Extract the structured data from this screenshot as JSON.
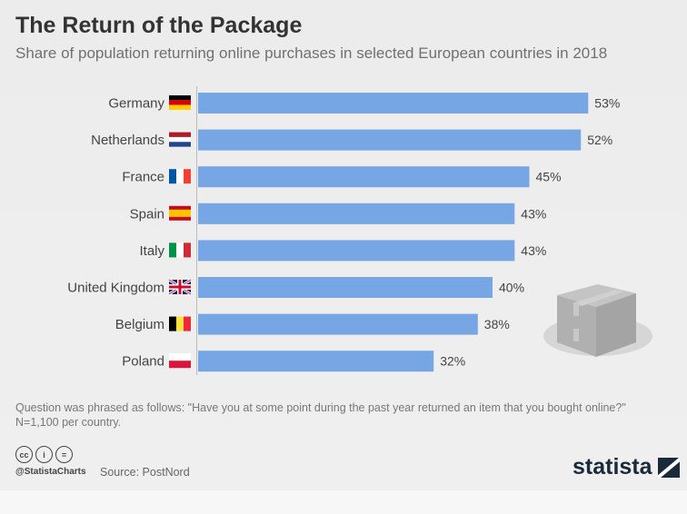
{
  "chart_data": {
    "type": "bar",
    "orientation": "horizontal",
    "title": "The Return of the Package",
    "subtitle": "Share of population returning online purchases in selected European countries in 2018",
    "categories": [
      "Germany",
      "Netherlands",
      "France",
      "Spain",
      "Italy",
      "United Kingdom",
      "Belgium",
      "Poland"
    ],
    "values": [
      53,
      52,
      45,
      43,
      43,
      40,
      38,
      32
    ],
    "labels": [
      "53%",
      "52%",
      "45%",
      "43%",
      "43%",
      "40%",
      "38%",
      "32%"
    ],
    "unit": "%",
    "xlim": [
      0,
      60
    ],
    "grid": false,
    "bar_color": "#76a6e4"
  },
  "footer": {
    "note": "Question was phrased as follows: \"Have you at some point during the past year returned an item that you bought online?\"",
    "sample": "N=1,100 per country.",
    "handle": "@StatistaCharts",
    "source": "Source: PostNord",
    "logo": "statista",
    "license_icons": [
      "cc",
      "by",
      "nd"
    ]
  }
}
